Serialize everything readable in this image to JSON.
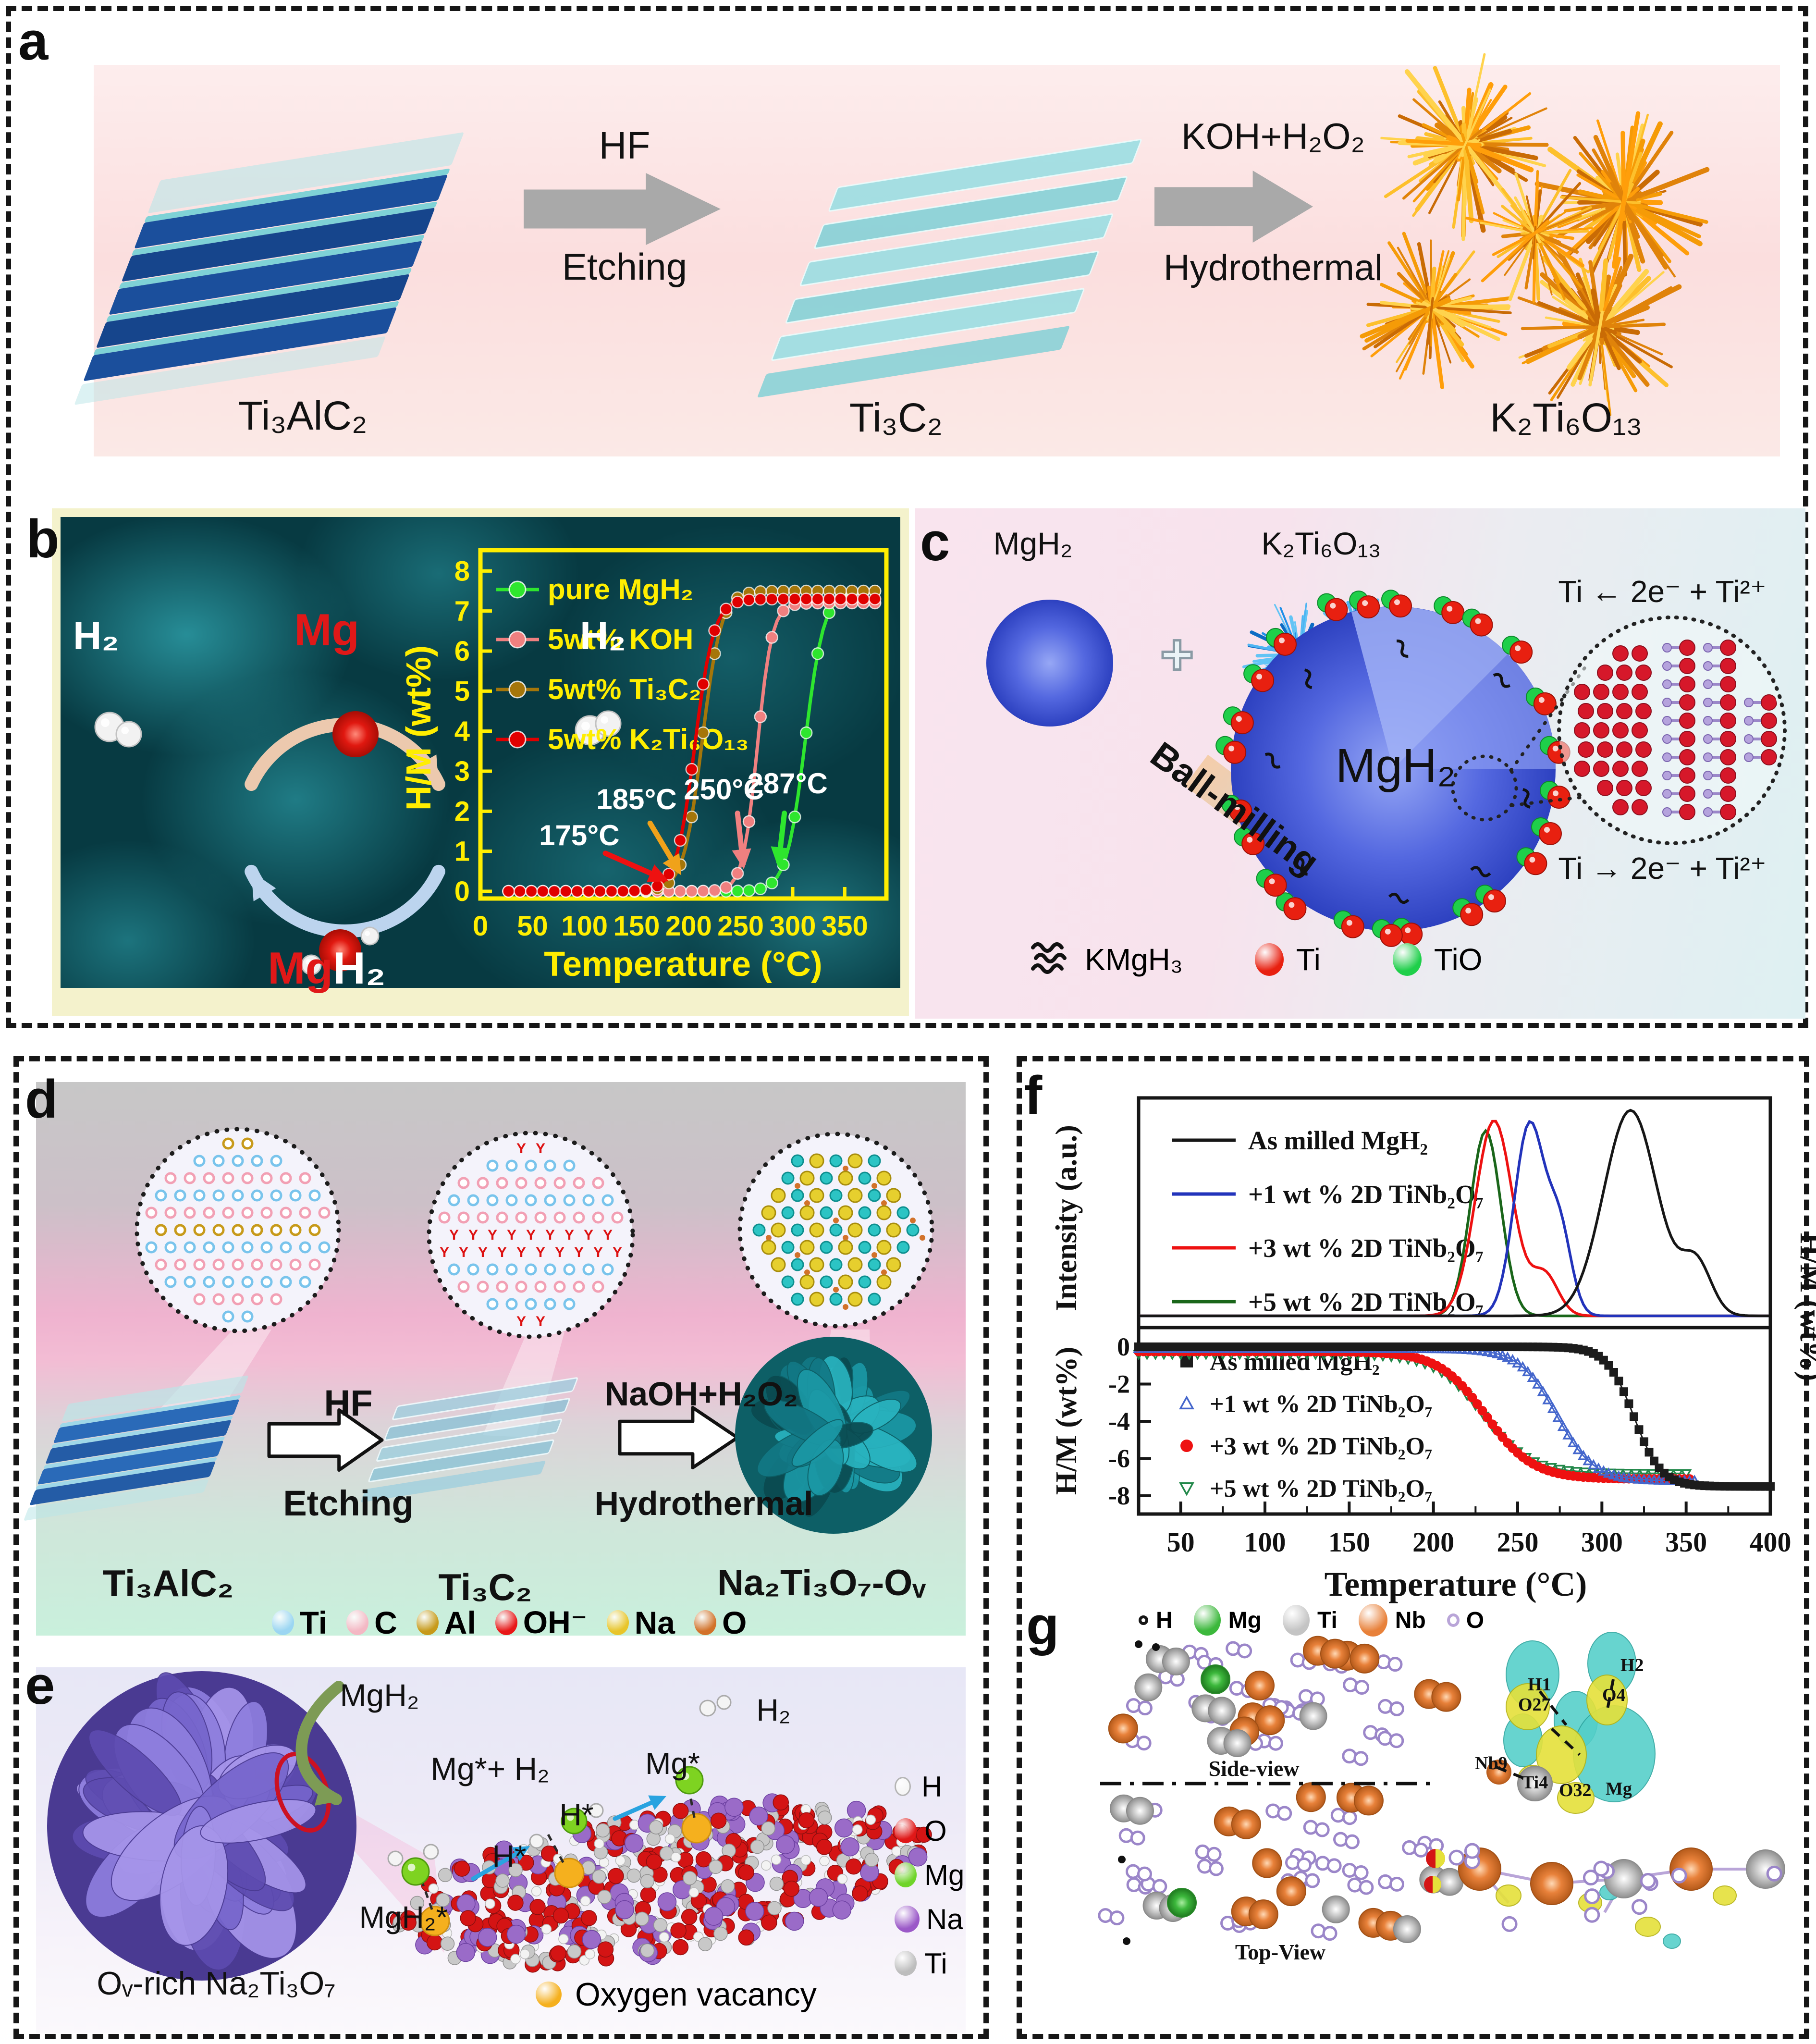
{
  "panel_a": {
    "letter": "a",
    "stage1": "Ti₃AlC₂",
    "stage2": "Ti₃C₂",
    "stage3": "K₂Ti₆O₁₃",
    "arrow1_top": "HF",
    "arrow1_bottom": "Etching",
    "arrow2_top": "KOH+H₂O₂",
    "arrow2_bottom": "Hydrothermal"
  },
  "panel_b": {
    "letter": "b",
    "h2_left": "H₂",
    "mg": "Mg",
    "h2_right": "H₂",
    "mgh2_mg": "Mg",
    "mgh2_h2": "H₂"
  },
  "panel_c": {
    "letter": "c",
    "reactant1": "MgH₂",
    "plus": "+",
    "reactant2": "K₂Ti₆O₁₃",
    "process": "Ball-milling",
    "sphere_label": "MgH₂",
    "eq_top": "Ti ← 2e⁻ + Ti²⁺",
    "eq_bottom": "Ti → 2e⁻ + Ti²⁺",
    "legend": [
      {
        "label": "KMgH₃"
      },
      {
        "label": "Ti",
        "color": "#e82010"
      },
      {
        "label": "TiO",
        "color": "#1fcf4a"
      }
    ]
  },
  "panel_d": {
    "letter": "d",
    "stage1": "Ti₃AlC₂",
    "stage2": "Ti₃C₂",
    "stage3": "Na₂Ti₃O₇-Oᵥ",
    "arrow1_top": "HF",
    "arrow1_bottom": "Etching",
    "arrow2_top": "NaOH+H₂O₂",
    "arrow2_bottom": "Hydrothermal",
    "legend": [
      {
        "label": "Ti",
        "color": "#9bd6f2"
      },
      {
        "label": "C",
        "color": "#f4b8c4"
      },
      {
        "label": "Al",
        "color": "#c79a1a"
      },
      {
        "label": "OH⁻",
        "color": "#e81818"
      },
      {
        "label": "Na",
        "color": "#e8c52a"
      },
      {
        "label": "O",
        "color": "#d2722a"
      }
    ]
  },
  "panel_e": {
    "letter": "e",
    "flower_label": "Oᵥ-rich Na₂Ti₃O₇",
    "mgh2": "MgH₂",
    "mg_h2": "Mg*+ H₂",
    "h2": "H₂",
    "mg_star": "Mg*",
    "h_star_a": "H*",
    "h_star_b": "H*",
    "mgh2_star": "MgH₂*",
    "legend": [
      {
        "label": "H",
        "color": "#f6f6f6"
      },
      {
        "label": "O",
        "color": "#e01818"
      },
      {
        "label": "Mg",
        "color": "#6fd42a"
      },
      {
        "label": "Na",
        "color": "#9b59c8"
      },
      {
        "label": "Ti",
        "color": "#bdbdbd"
      }
    ],
    "vacancy_label": "Oxygen vacancy",
    "vacancy_color": "#f5b01e"
  },
  "panel_f": {
    "letter": "f",
    "right_ylabel": "H/M (wt%)"
  },
  "panel_g": {
    "letter": "g",
    "legend": [
      {
        "label": "H",
        "color": "#161616",
        "style": "ring-small"
      },
      {
        "label": "Mg",
        "color": "#3cb83c",
        "style": "sphere"
      },
      {
        "label": "Ti",
        "color": "#c4c4c4",
        "style": "sphere"
      },
      {
        "label": "Nb",
        "color": "#e8813a",
        "style": "sphere"
      },
      {
        "label": "O",
        "color": "#b9a5d8",
        "style": "ring-small"
      }
    ],
    "side_view": "Side-view",
    "top_view": "Top-View",
    "sites": {
      "h1": "H1",
      "h2": "H2",
      "o27": "O27",
      "o4": "O4",
      "nb9": "Nb9",
      "ti4": "Ti4",
      "o32": "O32",
      "mg": "Mg"
    }
  },
  "chart_data": [
    {
      "id": "panel_b_hydrogenation_curves",
      "type": "line",
      "xlabel": "Temperature (°C)",
      "ylabel": "H/M (wt%)",
      "xlim": [
        0,
        390
      ],
      "ylim": [
        0,
        8.4
      ],
      "xticks": [
        0,
        50,
        100,
        150,
        200,
        250,
        300,
        350
      ],
      "yticks": [
        0,
        1,
        2,
        3,
        4,
        5,
        6,
        7,
        8
      ],
      "frame_color": "#ffee00",
      "legend_position": "upper-left",
      "grid": false,
      "series": [
        {
          "name": "pure MgH₂",
          "color": "#2ee62e",
          "onset_c": 287,
          "midpoint_c": 312,
          "k": 9,
          "plateau_wt": 7.5
        },
        {
          "name": "5wt% KOH",
          "color": "#f08080",
          "onset_c": 250,
          "midpoint_c": 266,
          "k": 7,
          "plateau_wt": 7.2
        },
        {
          "name": "5wt% Ti₃C₂",
          "color": "#a5760a",
          "onset_c": 185,
          "midpoint_c": 213,
          "k": 9,
          "plateau_wt": 7.5
        },
        {
          "name": "5wt% K₂Ti₆O₁₃",
          "color": "#e00000",
          "onset_c": 175,
          "midpoint_c": 206,
          "k": 9,
          "plateau_wt": 7.3
        }
      ],
      "annotations": [
        {
          "text": "185°C",
          "color": "#f0a21a",
          "tx": 150,
          "ty": 2.05,
          "x1": 163,
          "y1": 1.7,
          "x2": 193,
          "y2": 0.4
        },
        {
          "text": "175°C",
          "color": "#ee1111",
          "tx": 95,
          "ty": 1.15,
          "x1": 120,
          "y1": 0.95,
          "x2": 181,
          "y2": 0.25
        },
        {
          "text": "250°C",
          "color": "#f08080",
          "tx": 234,
          "ty": 2.3,
          "x1": 247,
          "y1": 1.95,
          "x2": 253,
          "y2": 0.55
        },
        {
          "text": "287°C",
          "color": "#2ee62e",
          "tx": 295,
          "ty": 2.45,
          "x1": 292,
          "y1": 1.95,
          "x2": 286,
          "y2": 0.6
        }
      ]
    },
    {
      "id": "panel_f_dsc_curves",
      "type": "line",
      "ylabel": "Intensity (a.u.)",
      "xlim": [
        25,
        400
      ],
      "legend_position": "upper-left",
      "grid": false,
      "series": [
        {
          "name": "As milled MgH₂",
          "color": "#161616",
          "peaks": [
            {
              "center": 317,
              "height": 1.0,
              "width": 16
            },
            {
              "center": 356,
              "height": 0.25,
              "width": 9
            }
          ]
        },
        {
          "name": "+1 wt % 2D TiNb₂O₇",
          "color": "#2233bb",
          "peaks": [
            {
              "center": 257,
              "height": 0.93,
              "width": 9
            },
            {
              "center": 275,
              "height": 0.4,
              "width": 7
            }
          ]
        },
        {
          "name": "+3 wt % 2D TiNb₂O₇",
          "color": "#ee1111",
          "peaks": [
            {
              "center": 236,
              "height": 0.95,
              "width": 11
            },
            {
              "center": 266,
              "height": 0.2,
              "width": 8
            }
          ]
        },
        {
          "name": "+5 wt % 2D TiNb₂O₇",
          "color": "#1a661a",
          "peaks": [
            {
              "center": 231,
              "height": 0.9,
              "width": 9
            }
          ]
        }
      ]
    },
    {
      "id": "panel_f_dehydrogenation_curves",
      "type": "line",
      "xlabel": "Temperature (°C)",
      "ylabel": "H/M (wt%)",
      "xlim": [
        25,
        400
      ],
      "ylim": [
        -8.8,
        0.8
      ],
      "xticks": [
        50,
        100,
        150,
        200,
        250,
        300,
        350,
        400
      ],
      "yticks": [
        0,
        -2,
        -4,
        -6,
        -8
      ],
      "legend_position": "upper-left",
      "grid": false,
      "series": [
        {
          "name": "As milled MgH₂",
          "marker": "filled-square",
          "color": "#1c1c1c",
          "onset_c": 300,
          "midpoint_c": 319,
          "k": 8,
          "final_wt": -7.5,
          "t_end": 400,
          "y0": 0
        },
        {
          "name": "+1 wt % 2D TiNb₂O₇",
          "marker": "open-triangle-up",
          "color": "#4466cc",
          "onset_c": 245,
          "midpoint_c": 273,
          "k": 11,
          "final_wt": -7.2,
          "t_end": 355,
          "y0": -0.1
        },
        {
          "name": "+3 wt % 2D TiNb₂O₇",
          "marker": "filled-circle",
          "color": "#ee1111",
          "onset_c": 200,
          "midpoint_c": 231,
          "k": 14,
          "final_wt": -7.1,
          "t_end": 352,
          "y0": -0.25
        },
        {
          "name": "+5 wt % 2D TiNb₂O₇",
          "marker": "open-triangle-down",
          "color": "#22884a",
          "onset_c": 197,
          "midpoint_c": 229,
          "k": 14,
          "final_wt": -6.8,
          "t_end": 350,
          "y0": -0.4
        }
      ]
    }
  ]
}
